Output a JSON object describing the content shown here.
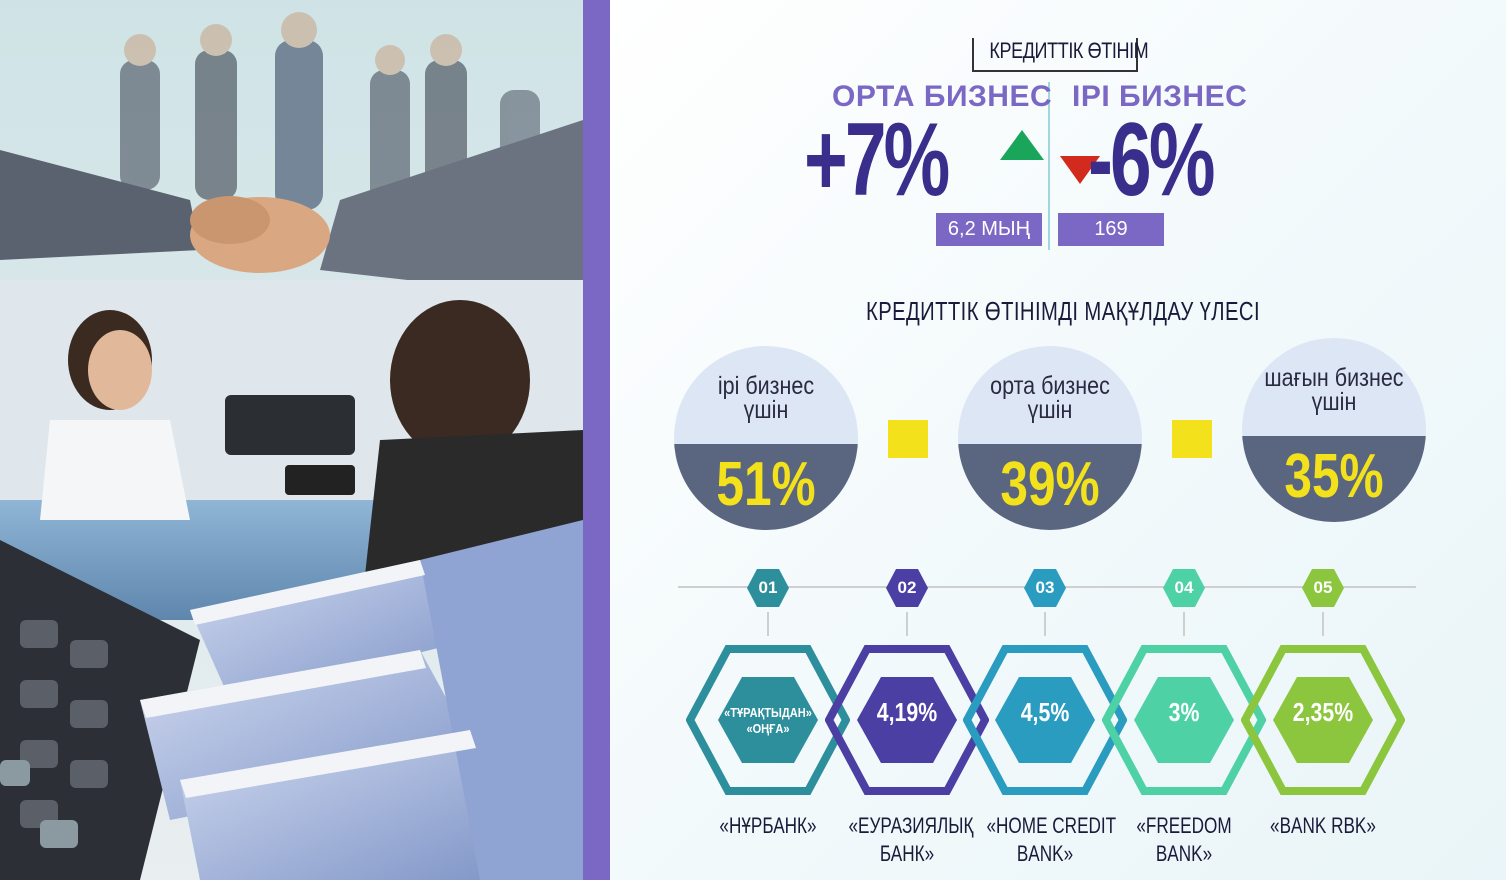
{
  "credit_requests": {
    "title": "КРЕДИТТІК ӨТІНІМ",
    "mid_business": {
      "label": "ОРТА БИЗНЕС",
      "change": "+7%",
      "trend": "up",
      "count": "6,2 МЫҢ"
    },
    "large_business": {
      "label": "ІРІ БИЗНЕС",
      "change": "-6%",
      "trend": "down",
      "count": "169"
    }
  },
  "approval_share": {
    "title": "КРЕДИТТІК ӨТІНІМДІ МАҚҰЛДАУ ҮЛЕСІ",
    "items": [
      {
        "label_line1": "ірі бизнес",
        "label_line2": "үшін",
        "value": "51%"
      },
      {
        "label_line1": "орта бизнес",
        "label_line2": "үшін",
        "value": "39%"
      },
      {
        "label_line1": "шағын бизнес",
        "label_line2": "үшін",
        "value": "35%"
      }
    ]
  },
  "banks": [
    {
      "num": "01",
      "value_line1": "«ТҰРАҚТЫДАН»",
      "value_line2": "«ОҢҒА»",
      "name_line1": "«НҰРБАНК»",
      "name_line2": "",
      "color": "#2e8f9c"
    },
    {
      "num": "02",
      "value": "4,19%",
      "name_line1": "«ЕУРАЗИЯЛЫҚ",
      "name_line2": "БАНК»",
      "color": "#4b3fa3"
    },
    {
      "num": "03",
      "value": "4,5%",
      "name_line1": "«HOME CREDIT",
      "name_line2": "BANK»",
      "color": "#2a9cc0"
    },
    {
      "num": "04",
      "value": "3%",
      "name_line1": "«FREEDOM",
      "name_line2": "BANK»",
      "color": "#4fd1a6"
    },
    {
      "num": "05",
      "value": "2,35%",
      "name_line1": "«BANK RBK»",
      "name_line2": "",
      "color": "#8cc63f"
    }
  ],
  "colors": {
    "accent_purple": "#7b68c4",
    "dark_blue": "#3a2e8c",
    "up_green": "#1aa65a",
    "down_red": "#d32a1e",
    "yellow": "#f3e21b"
  },
  "photo": {
    "icon": "business-handshake-bank-photo"
  }
}
